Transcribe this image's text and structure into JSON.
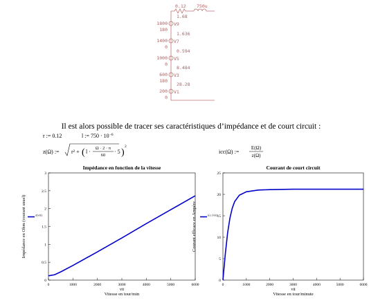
{
  "circuit": {
    "top_labels": [
      "0.12",
      "750u"
    ],
    "sources": [
      {
        "current": "1.68",
        "voltage": "1800",
        "name": "V9",
        "phase": "180"
      },
      {
        "current": "1.636",
        "voltage": "1400",
        "name": "V7",
        "phase": "0"
      },
      {
        "current": "0.594",
        "voltage": "1000",
        "name": "V5",
        "phase": "0"
      },
      {
        "current": "8.484",
        "voltage": "600",
        "name": "V3",
        "phase": "180"
      },
      {
        "current": "28.28",
        "voltage": "200",
        "name": "V1",
        "phase": "0"
      }
    ]
  },
  "text": "Il est alors possible de tracer ses caractéristiques d’impédance et de court circuit :",
  "equations": {
    "r": "r := 0.12",
    "l": "l := 750 · 10",
    "l_exp": "−6",
    "z_lhs": "z(Ω) :=",
    "z_r": "r² +",
    "z_l": "l ·",
    "z_num": "Ω · 2 · π",
    "z_den": "60",
    "z_tail": "· 5",
    "z_sq": "2",
    "icc_lhs": "icc(Ω) :=",
    "icc_num": "E(Ω)",
    "icc_den": "z(Ω)"
  },
  "chart_data": [
    {
      "type": "line",
      "title": "Impédance en fonction de la vitesse",
      "x_variable": "vit",
      "x_label": "Vitesse en tour/min",
      "y_label": "Impédance en Ohm (courant usuel)",
      "x": [
        0,
        250,
        500,
        1000,
        2000,
        3000,
        4000,
        5000,
        6000
      ],
      "series": [
        {
          "name": "z(vit)",
          "color": "#0000cc",
          "values": [
            0.12,
            0.15,
            0.23,
            0.41,
            0.79,
            1.18,
            1.58,
            1.97,
            2.36
          ]
        }
      ],
      "xlim": [
        0,
        6000
      ],
      "ylim": [
        0,
        3
      ],
      "xticks": [
        0,
        1000,
        2000,
        3000,
        4000,
        5000,
        6000
      ],
      "yticks": [
        0,
        0.5,
        1,
        1.5,
        2,
        2.5,
        3
      ]
    },
    {
      "type": "line",
      "title": "Courant de court circuit",
      "x_variable": "vit",
      "x_label": "Vitesse en tour/minute",
      "y_label": "Courant efficace en Ampère",
      "x": [
        0,
        100,
        200,
        300,
        400,
        500,
        700,
        1000,
        1500,
        2000,
        3000,
        4000,
        5000,
        6000
      ],
      "series": [
        {
          "name": "icc (vit)",
          "color": "#0000cc",
          "values": [
            0,
            6,
            11,
            14.5,
            16.8,
            18.3,
            19.8,
            20.6,
            21,
            21.1,
            21.2,
            21.2,
            21.2,
            21.2
          ]
        }
      ],
      "xlim": [
        0,
        6000
      ],
      "ylim": [
        0,
        25
      ],
      "xticks": [
        0,
        1000,
        2000,
        3000,
        4000,
        5000,
        6000
      ],
      "yticks": [
        0,
        5,
        10,
        15,
        20,
        25
      ]
    }
  ]
}
